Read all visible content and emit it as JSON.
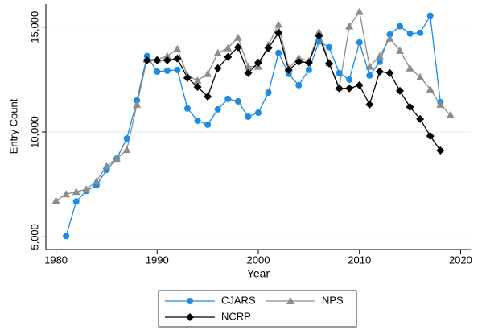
{
  "chart_data": {
    "type": "line",
    "x_label": "Year",
    "y_label": "Entry Count",
    "x": [
      1980,
      1981,
      1982,
      1983,
      1984,
      1985,
      1986,
      1987,
      1988,
      1989,
      1990,
      1991,
      1992,
      1993,
      1994,
      1995,
      1996,
      1997,
      1998,
      1999,
      2000,
      2001,
      2002,
      2003,
      2004,
      2005,
      2006,
      2007,
      2008,
      2009,
      2010,
      2011,
      2012,
      2013,
      2014,
      2015,
      2016,
      2017,
      2018,
      2019
    ],
    "series": [
      {
        "name": "CJARS",
        "color": "#1a8ce6",
        "marker": "circle",
        "values": [
          null,
          5040,
          6690,
          7190,
          7460,
          8190,
          8730,
          9690,
          11500,
          13620,
          12880,
          12920,
          12960,
          11120,
          10540,
          10350,
          11080,
          11580,
          11460,
          10730,
          10920,
          11880,
          13770,
          12770,
          12230,
          12960,
          14310,
          14040,
          12810,
          12500,
          14270,
          12690,
          13350,
          14650,
          15040,
          14690,
          14730,
          15540,
          11420,
          null
        ]
      },
      {
        "name": "NPS",
        "color": "#8c8c8c",
        "marker": "triangle",
        "values": [
          6730,
          7040,
          7150,
          7270,
          7650,
          8380,
          8730,
          9150,
          11310,
          13460,
          13460,
          13620,
          13960,
          12690,
          12460,
          12770,
          13770,
          14000,
          14500,
          13120,
          13120,
          14150,
          15120,
          13040,
          13540,
          13380,
          14770,
          13310,
          12120,
          15040,
          15730,
          13120,
          13620,
          14460,
          13880,
          13040,
          12620,
          12040,
          11310,
          10810
        ]
      },
      {
        "name": "NCRP",
        "color": "#000000",
        "marker": "diamond",
        "values": [
          null,
          null,
          null,
          null,
          null,
          null,
          null,
          null,
          null,
          13420,
          13420,
          13420,
          13500,
          12580,
          12150,
          11690,
          13040,
          13580,
          14040,
          12810,
          13310,
          14000,
          14730,
          12960,
          13350,
          13310,
          14580,
          13270,
          12080,
          12080,
          12230,
          11310,
          12880,
          12810,
          11960,
          11190,
          10620,
          9810,
          9120,
          null
        ]
      }
    ],
    "xlim": [
      1979,
      2021
    ],
    "ylim": [
      4400,
      16100
    ],
    "xticks": [
      1980,
      1990,
      2000,
      2010,
      2020
    ],
    "yticks": [
      {
        "value": 5000,
        "label": "5,000"
      },
      {
        "value": 10000,
        "label": "10,000"
      },
      {
        "value": 15000,
        "label": "15,000"
      }
    ],
    "grid": true,
    "legend": "bottom"
  }
}
